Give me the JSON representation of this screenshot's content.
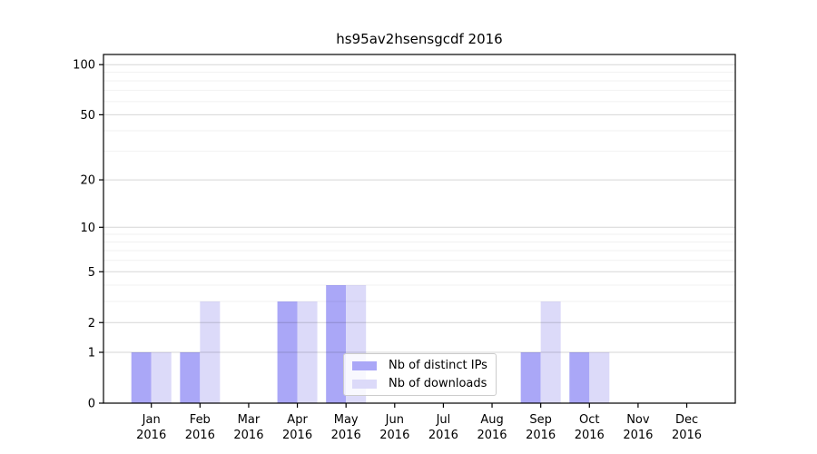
{
  "chart_data": {
    "type": "bar",
    "title": "hs95av2hsensgcdf 2016",
    "categories": [
      "Jan",
      "Feb",
      "Mar",
      "Apr",
      "May",
      "Jun",
      "Jul",
      "Aug",
      "Sep",
      "Oct",
      "Nov",
      "Dec"
    ],
    "x_year": "2016",
    "series": [
      {
        "name": "Nb of distinct IPs",
        "color": "#aaa7f7",
        "values": [
          1,
          1,
          0,
          3,
          4,
          0,
          0,
          0,
          1,
          1,
          0,
          0
        ]
      },
      {
        "name": "Nb of downloads",
        "color": "#dcdaf9",
        "values": [
          1,
          3,
          0,
          3,
          4,
          0,
          0,
          0,
          3,
          1,
          0,
          0
        ]
      }
    ],
    "y_axis": {
      "scale": "log1p",
      "tick_values": [
        0,
        1,
        2,
        5,
        10,
        20,
        50,
        100
      ],
      "minor_gridline_values": [
        3,
        4,
        6,
        7,
        8,
        9,
        30,
        40,
        60,
        70,
        80,
        90
      ]
    },
    "legend_position": "inside-bottom-center",
    "grid": "on"
  }
}
